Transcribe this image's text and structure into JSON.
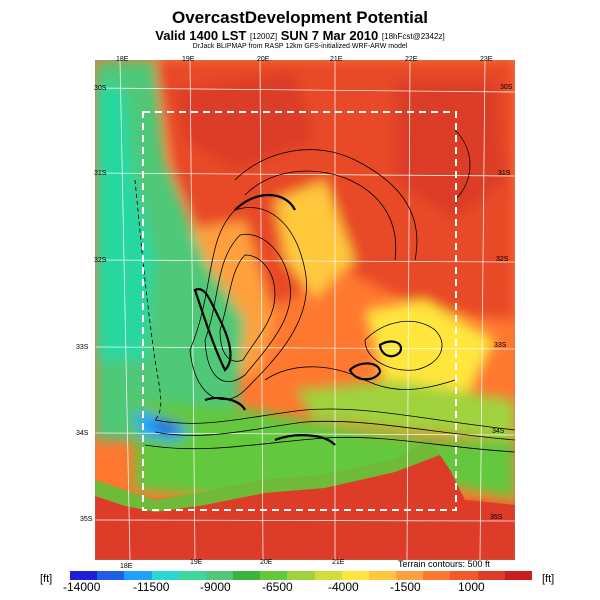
{
  "title": "OvercastDevelopment Potential",
  "subtitle_main": "Valid 1400 LST",
  "subtitle_run": "[1200Z]",
  "subtitle_date": "SUN 7 Mar 2010",
  "subtitle_fcst": "[18hFcst@2342z]",
  "credit": "DrJack BLIPMAP from RASP 12km GFS-initialized WRF-ARW model",
  "lon_top": [
    "18E",
    "19E",
    "20E",
    "21E",
    "22E",
    "23E"
  ],
  "lon_bottom": [
    "18E",
    "19E",
    "20E",
    "21E"
  ],
  "lat_left": [
    "30S",
    "31S",
    "32S",
    "33S",
    "34S",
    "35S"
  ],
  "lat_right": [
    "30S",
    "31S",
    "32S",
    "33S",
    "34S",
    "35S"
  ],
  "terrain_note": "Terrain contours: 500 ft",
  "unit_left": "[ft]",
  "unit_right": "[ft]",
  "scale_ticks": [
    "-14000",
    "-11500",
    "-9000",
    "-6500",
    "-4000",
    "-1500",
    "1000"
  ],
  "scale_colors": [
    "#1f1fd8",
    "#1f5fe8",
    "#1fa0ff",
    "#28d8d0",
    "#3cd8a0",
    "#50c878",
    "#3cb43c",
    "#64c83c",
    "#a0d23c",
    "#d2dc3c",
    "#ffe63c",
    "#ffc83c",
    "#ffa03c",
    "#ff7830",
    "#f05a28",
    "#dc3c28",
    "#c81e1e"
  ],
  "colors": {
    "ocean_deep": "#1f1fd8",
    "ocean": "#28d8d0",
    "low": "#50c878",
    "mid": "#ffe63c",
    "high": "#ff7830",
    "max": "#dc3c28"
  }
}
